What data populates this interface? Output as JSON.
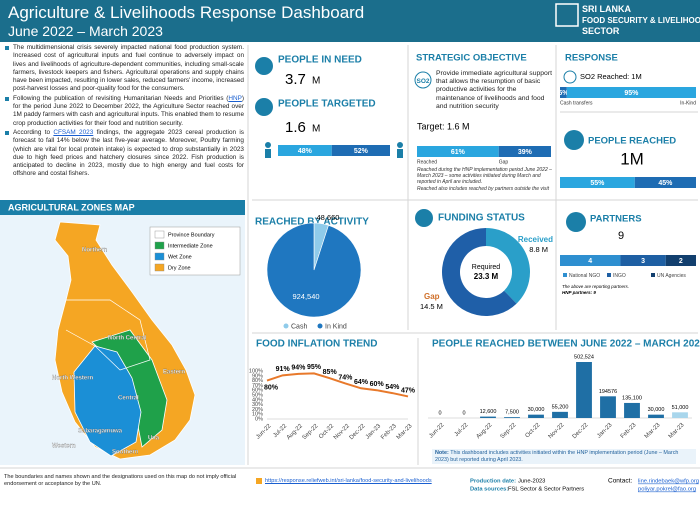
{
  "header": {
    "title": "Agriculture & Livelihoods Response Dashboard",
    "subtitle": "June 2022 – March 2023",
    "logo": [
      "SRI LANKA",
      "FOOD SECURITY & LIVELIHOODS",
      "SECTOR"
    ]
  },
  "intro": {
    "bullets": [
      {
        "parts": [
          "The multidimensional crisis severely impacted national food production system. Increased cost of agricultural inputs and fuel continue to adversely impact on lives and livelihoods of agriculture-dependent communities, including small-scale farmers, livestock keepers and fishers. Agricultural operations and supply chains have been impacted, resulting in lower sales, reduced farmers' income, increased post-harvest losses and poor-quality food for the consumers."
        ]
      },
      {
        "parts": [
          "Following the publication of revisiting Humanitarian Needs and Priorities (",
          "HNP",
          ") for the period June 2022 to December 2022, the Agriculture Sector reached over 1M paddy farmers with cash and agricultural inputs. This enabled them to resume crop production activities for their food and nutrition security."
        ]
      },
      {
        "parts": [
          "According to ",
          "CFSAM 2023",
          " findings, the aggregate 2023 cereal production is forecast to fall 14% below the last five-year average. Moreover, Poultry farming (which are vital for local protein intake) is expected to drop substantially in 2023 due to high feed prices and hatchery closures since 2022. Fish production is anticipated to decline in 2023, mostly due to high energy and fuel costs for offshore and costal fishers."
        ]
      }
    ]
  },
  "people_in_need": {
    "title": "PEOPLE IN NEED",
    "value": "3.7",
    "unit": "M"
  },
  "people_targeted": {
    "title": "PEOPLE TARGETED",
    "value": "1.6",
    "unit": "M",
    "split": [
      {
        "value": 48,
        "label": "48%",
        "color": "#2aa6df"
      },
      {
        "value": 52,
        "label": "52%",
        "color": "#1e6cb3"
      }
    ]
  },
  "strategic_objective": {
    "title": "STRATEGIC OBJECTIVE",
    "code": "SO2",
    "text": "Provide immediate agricultural support that allows the resumption of basic productive activities for the maintenance of livelihoods and food and nutrition security",
    "target": "Target: 1.6 M",
    "split": [
      {
        "value": 61,
        "label": "61%",
        "name": "Reached",
        "color": "#2aa6df"
      },
      {
        "value": 39,
        "label": "39%",
        "name": "Gap",
        "color": "#1e6cb3"
      }
    ],
    "notes": [
      "Reached during the HNP implementation period June 2022 – March 2023 – some activities initiated during March and reported in April are included.",
      "Reached also includes reached by partners outside the visit"
    ]
  },
  "response": {
    "title": "RESPONSE",
    "reached": "SO2 Reached: 1M",
    "split": [
      {
        "value": 5,
        "label": "5%",
        "name": "Cash transfers",
        "color": "#1e6cb3"
      },
      {
        "value": 95,
        "label": "95%",
        "name": "In-Kind",
        "color": "#2aa6df"
      }
    ]
  },
  "people_reached": {
    "title": "PEOPLE REACHED",
    "value": "1M",
    "split": [
      {
        "value": 55,
        "label": "55%",
        "color": "#2aa6df"
      },
      {
        "value": 45,
        "label": "45%",
        "color": "#1e6cb3"
      }
    ]
  },
  "partners": {
    "title": "PARTNERS",
    "value": "9",
    "split": [
      {
        "value": 4,
        "name": "National NGO",
        "color": "#2e8fd0"
      },
      {
        "value": 3,
        "name": "INGO",
        "color": "#1e5fa3"
      },
      {
        "value": 2,
        "name": "UN Agencies",
        "color": "#123f6e"
      }
    ],
    "notes": [
      "The above are reporting partners.",
      "HNP partners: 9"
    ]
  },
  "map": {
    "title": "AGRICULTURAL ZONES MAP",
    "legend": [
      {
        "name": "Province Boundary",
        "color": "#ffffff"
      },
      {
        "name": "Intermediate Zone",
        "color": "#1fa14a"
      },
      {
        "name": "Wet Zone",
        "color": "#1b8fd6"
      },
      {
        "name": "Dry Zone",
        "color": "#f5a623"
      }
    ],
    "labels": [
      "Northern",
      "North Central",
      "North Western",
      "Eastern",
      "Central",
      "Uva",
      "Sabaragamuwa",
      "Western",
      "Southern"
    ]
  },
  "chart_data": [
    {
      "type": "pie",
      "title": "REACHED BY ACTIVITY",
      "categories": [
        "Cash",
        "In Kind"
      ],
      "values": [
        48660,
        924540
      ],
      "value_labels": [
        "48,660",
        "924,540"
      ],
      "colors": [
        "#8fcbea",
        "#1f77c0"
      ]
    },
    {
      "type": "donut",
      "title": "FUNDING STATUS",
      "categories": [
        "Received",
        "Gap"
      ],
      "values": [
        8.8,
        14.5
      ],
      "value_labels": [
        "8.8 M",
        "14.5 M"
      ],
      "colors": [
        "#2a9fc9",
        "#1f5fa8"
      ],
      "center_label": "Required",
      "center_value": "23.3 M"
    },
    {
      "type": "line",
      "title": "FOOD INFLATION TREND",
      "categories": [
        "Jun-22",
        "Jul-22",
        "Aug-22",
        "Sep-22",
        "Oct-22",
        "Nov-22",
        "Dec-22",
        "Jan-23",
        "Feb-23",
        "Mar-23"
      ],
      "values": [
        80,
        91,
        94,
        95,
        85,
        74,
        64,
        60,
        54,
        47
      ],
      "value_labels": [
        "80%",
        "91%",
        "94%",
        "95%",
        "85%",
        "74%",
        "64%",
        "60%",
        "54%",
        "47%"
      ],
      "color": "#e8792b",
      "ylim": [
        0,
        100
      ],
      "yticks": [
        {
          "value": 0,
          "label": "0%"
        },
        {
          "value": 10,
          "label": "10%"
        },
        {
          "value": 20,
          "label": "20%"
        },
        {
          "value": 30,
          "label": "30%"
        },
        {
          "value": 40,
          "label": "40%"
        },
        {
          "value": 50,
          "label": "50%"
        },
        {
          "value": 60,
          "label": "60%"
        },
        {
          "value": 70,
          "label": "70%"
        },
        {
          "value": 80,
          "label": "80%"
        },
        {
          "value": 90,
          "label": "90%"
        },
        {
          "value": 100,
          "label": "100%"
        }
      ]
    },
    {
      "type": "bar",
      "title": "PEOPLE REACHED BETWEEN JUNE 2022 – MARCH 2023",
      "categories": [
        "Jun-22",
        "Jul-22",
        "Aug-22",
        "Sep-22",
        "Oct-22",
        "Nov-22",
        "Dec-22",
        "Jan-23",
        "Feb-23",
        "Mar-23",
        "Mar-23"
      ],
      "values": [
        0,
        0,
        12600,
        7500,
        30000,
        55200,
        502524,
        194576,
        135100,
        30000,
        51000
      ],
      "value_labels": [
        "0",
        "0",
        "12,600",
        "7,500",
        "30,000",
        "55,200",
        "502,524",
        "194576",
        "135,100",
        "30,000",
        "51,000"
      ],
      "colors": [
        "#1f6fa5",
        "#1f6fa5",
        "#1f6fa5",
        "#1f6fa5",
        "#1f6fa5",
        "#1f6fa5",
        "#1f6fa5",
        "#1f6fa5",
        "#1f6fa5",
        "#1f6fa5",
        "#a9d6ec"
      ],
      "note_label": "Note:",
      "note": "This dashboard includes activities initiated within the HNP implementation period (June – March 2023) but reported during April 2023."
    }
  ],
  "footer": {
    "disclaimer": "The boundaries and names shown and the designations used on this map do not imply official endorsement or acceptance by the UN.",
    "link": "https://response.reliefweb.int/sri-lanka/food-security-and-livelihoods",
    "production_label": "Production date:",
    "production": "June-2023",
    "sources_label": "Data sources:",
    "sources": "FSL Sector & Sector Partners",
    "contact_label": "Contact:",
    "contacts": [
      "line.rindebaek@wfp.org",
      "poliyar.pokrel@fao.org"
    ]
  }
}
